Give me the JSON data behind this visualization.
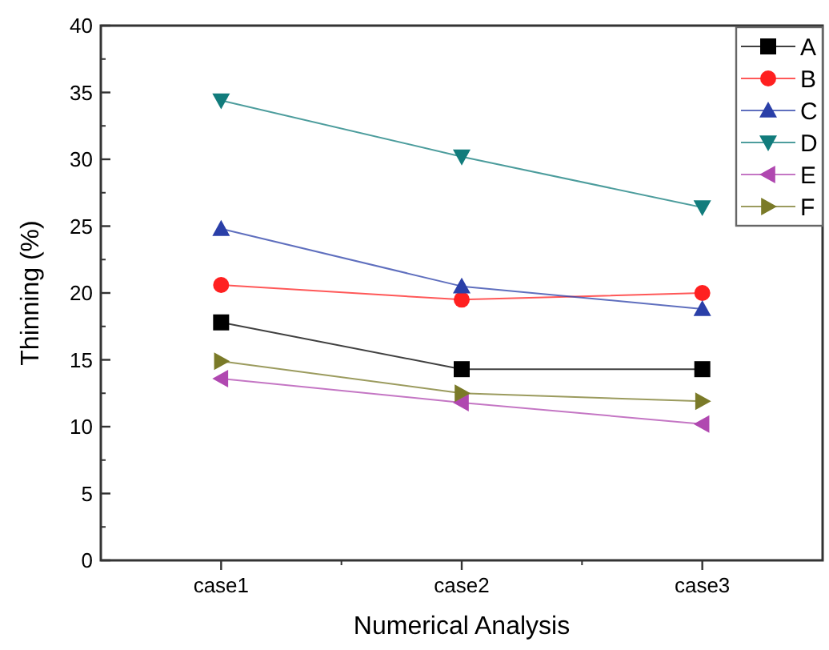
{
  "chart_data": {
    "type": "line",
    "xlabel": "Numerical Analysis",
    "ylabel": "Thinning (%)",
    "categories": [
      "case1",
      "case2",
      "case3"
    ],
    "ylim": [
      0,
      40
    ],
    "yticks": [
      0,
      5,
      10,
      15,
      20,
      25,
      30,
      35,
      40
    ],
    "legend": "top right",
    "grid": false,
    "series": [
      {
        "name": "A",
        "color": "#000000",
        "marker": "square",
        "values": [
          17.8,
          14.3,
          14.3
        ]
      },
      {
        "name": "B",
        "color": "#ff2020",
        "marker": "circle",
        "values": [
          20.6,
          19.5,
          20.0
        ]
      },
      {
        "name": "C",
        "color": "#2a3fa8",
        "marker": "triangle",
        "values": [
          24.8,
          20.5,
          18.8
        ]
      },
      {
        "name": "D",
        "color": "#127c7c",
        "marker": "triangle-down",
        "values": [
          34.4,
          30.2,
          26.4
        ]
      },
      {
        "name": "E",
        "color": "#b048b0",
        "marker": "triangle-left",
        "values": [
          13.6,
          11.8,
          10.2
        ]
      },
      {
        "name": "F",
        "color": "#7a7a28",
        "marker": "triangle-right",
        "values": [
          14.9,
          12.5,
          11.9
        ]
      }
    ]
  }
}
